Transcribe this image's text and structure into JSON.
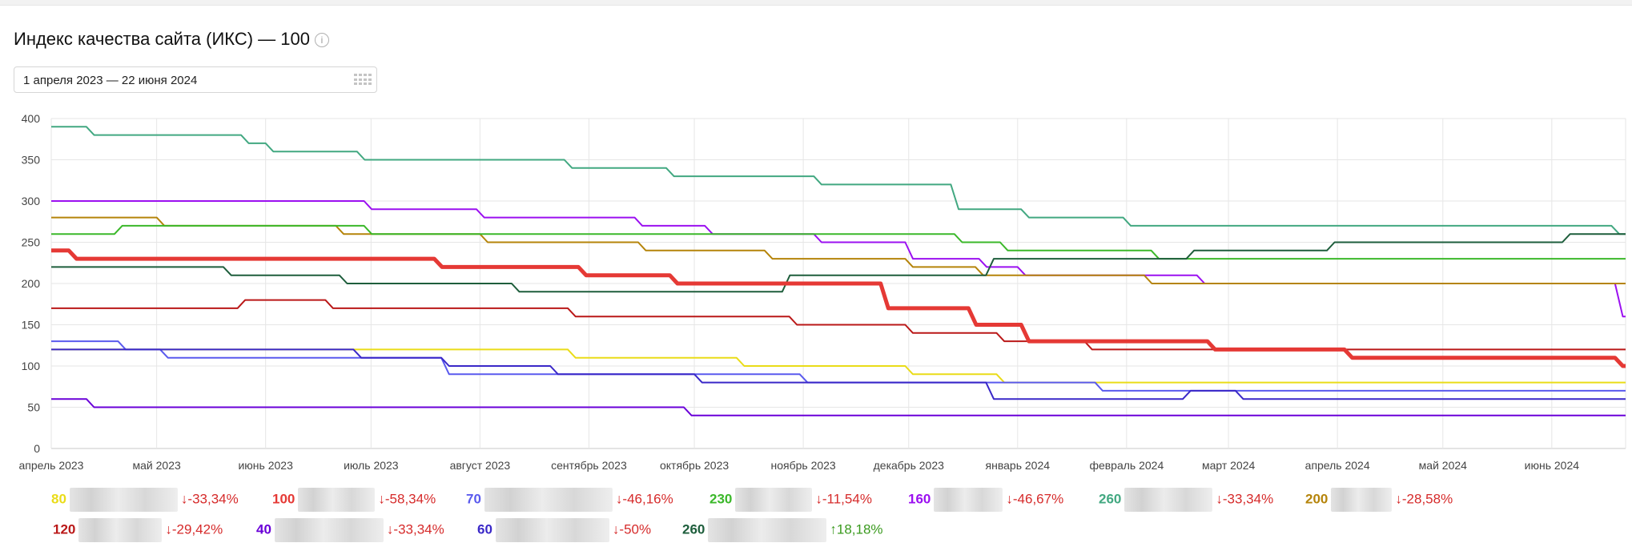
{
  "title": "Индекс качества сайта (ИКС) — 100",
  "info_icon": "info-icon",
  "date_range": "1 апреля 2023 — 22 июня 2024",
  "calendar_icon": "calendar-grid-icon",
  "chart_data": {
    "type": "line",
    "title": "",
    "xlabel": "",
    "ylabel": "",
    "x_range": [
      "2023-04-01",
      "2024-06-22"
    ],
    "ylim": [
      0,
      400
    ],
    "y_ticks": [
      0,
      50,
      100,
      150,
      200,
      250,
      300,
      350,
      400
    ],
    "x_ticks": [
      {
        "date": "2023-04-01",
        "label": "апрель 2023"
      },
      {
        "date": "2023-05-01",
        "label": "май 2023"
      },
      {
        "date": "2023-06-01",
        "label": "июнь 2023"
      },
      {
        "date": "2023-07-01",
        "label": "июль 2023"
      },
      {
        "date": "2023-08-01",
        "label": "август 2023"
      },
      {
        "date": "2023-09-01",
        "label": "сентябрь 2023"
      },
      {
        "date": "2023-10-01",
        "label": "октябрь 2023"
      },
      {
        "date": "2023-11-01",
        "label": "ноябрь 2023"
      },
      {
        "date": "2023-12-01",
        "label": "декабрь 2023"
      },
      {
        "date": "2024-01-01",
        "label": "январь 2024"
      },
      {
        "date": "2024-02-01",
        "label": "февраль 2024"
      },
      {
        "date": "2024-03-01",
        "label": "март 2024"
      },
      {
        "date": "2024-04-01",
        "label": "апрель 2024"
      },
      {
        "date": "2024-05-01",
        "label": "май 2024"
      },
      {
        "date": "2024-06-01",
        "label": "июнь 2024"
      }
    ],
    "grid": true,
    "series": [
      {
        "color": "#42a881",
        "legend_value": "260",
        "change": "↓-33,34%",
        "steps": [
          [
            "2023-04-01",
            390
          ],
          [
            "2023-04-11",
            380
          ],
          [
            "2023-05-25",
            370
          ],
          [
            "2023-06-01",
            360
          ],
          [
            "2023-06-27",
            350
          ],
          [
            "2023-08-25",
            340
          ],
          [
            "2023-09-23",
            330
          ],
          [
            "2023-11-04",
            320
          ],
          [
            "2023-12-13",
            290
          ],
          [
            "2024-01-02",
            280
          ],
          [
            "2024-01-31",
            270
          ],
          [
            "2024-06-18",
            260
          ],
          [
            "2024-06-22",
            260
          ]
        ]
      },
      {
        "color": "#9b10f0",
        "legend_value": "160",
        "change": "↓-46,67%",
        "steps": [
          [
            "2023-04-01",
            300
          ],
          [
            "2023-06-29",
            290
          ],
          [
            "2023-07-31",
            280
          ],
          [
            "2023-09-14",
            270
          ],
          [
            "2023-10-04",
            260
          ],
          [
            "2023-11-04",
            250
          ],
          [
            "2023-11-30",
            230
          ],
          [
            "2023-12-21",
            220
          ],
          [
            "2024-01-01",
            210
          ],
          [
            "2024-02-21",
            200
          ],
          [
            "2024-06-19",
            160
          ],
          [
            "2024-06-22",
            160
          ]
        ]
      },
      {
        "color": "#b5840a",
        "legend_value": "200",
        "change": "↓-28,58%",
        "steps": [
          [
            "2023-04-01",
            280
          ],
          [
            "2023-05-01",
            270
          ],
          [
            "2023-06-21",
            260
          ],
          [
            "2023-08-01",
            250
          ],
          [
            "2023-09-15",
            240
          ],
          [
            "2023-10-21",
            230
          ],
          [
            "2023-11-30",
            220
          ],
          [
            "2023-12-20",
            210
          ],
          [
            "2024-02-06",
            200
          ],
          [
            "2024-06-22",
            200
          ]
        ]
      },
      {
        "color": "#3bb82a",
        "legend_value": "230",
        "change": "↓-11,54%",
        "steps": [
          [
            "2023-04-01",
            260
          ],
          [
            "2023-04-19",
            270
          ],
          [
            "2023-06-29",
            260
          ],
          [
            "2023-12-14",
            250
          ],
          [
            "2023-12-27",
            240
          ],
          [
            "2024-02-08",
            230
          ],
          [
            "2024-06-22",
            230
          ]
        ]
      },
      {
        "color": "#1e5e3c",
        "legend_value": "260",
        "change": "↑18,18%",
        "steps": [
          [
            "2023-04-01",
            220
          ],
          [
            "2023-05-20",
            210
          ],
          [
            "2023-06-22",
            200
          ],
          [
            "2023-08-10",
            190
          ],
          [
            "2023-10-26",
            210
          ],
          [
            "2023-12-23",
            230
          ],
          [
            "2024-02-18",
            240
          ],
          [
            "2024-03-29",
            250
          ],
          [
            "2024-06-04",
            260
          ],
          [
            "2024-06-22",
            260
          ]
        ]
      },
      {
        "color": "#e53935",
        "legend_value": "100",
        "change": "↓-58,34%",
        "bold": true,
        "steps": [
          [
            "2023-04-01",
            240
          ],
          [
            "2023-04-06",
            230
          ],
          [
            "2023-07-19",
            220
          ],
          [
            "2023-08-29",
            210
          ],
          [
            "2023-09-24",
            200
          ],
          [
            "2023-11-23",
            170
          ],
          [
            "2023-12-18",
            150
          ],
          [
            "2024-01-02",
            130
          ],
          [
            "2024-02-24",
            120
          ],
          [
            "2024-04-03",
            110
          ],
          [
            "2024-06-19",
            100
          ],
          [
            "2024-06-22",
            100
          ]
        ]
      },
      {
        "color": "#ba1818",
        "legend_value": "120",
        "change": "↓-29,42%",
        "steps": [
          [
            "2023-04-01",
            170
          ],
          [
            "2023-05-24",
            180
          ],
          [
            "2023-06-18",
            170
          ],
          [
            "2023-08-26",
            160
          ],
          [
            "2023-10-28",
            150
          ],
          [
            "2023-11-30",
            140
          ],
          [
            "2023-12-26",
            130
          ],
          [
            "2024-01-20",
            120
          ],
          [
            "2024-06-22",
            120
          ]
        ]
      },
      {
        "color": "#eadc18",
        "legend_value": "80",
        "change": "↓-33,34%",
        "steps": [
          [
            "2023-04-01",
            120
          ],
          [
            "2023-08-26",
            110
          ],
          [
            "2023-10-13",
            100
          ],
          [
            "2023-11-30",
            90
          ],
          [
            "2023-12-26",
            80
          ],
          [
            "2024-06-22",
            80
          ]
        ]
      },
      {
        "color": "#5a5aee",
        "legend_value": "70",
        "change": "↓-46,16%",
        "steps": [
          [
            "2023-04-01",
            130
          ],
          [
            "2023-04-20",
            120
          ],
          [
            "2023-05-02",
            110
          ],
          [
            "2023-06-26",
            110
          ],
          [
            "2023-07-21",
            90
          ],
          [
            "2023-10-31",
            80
          ],
          [
            "2024-01-23",
            70
          ],
          [
            "2024-06-22",
            70
          ]
        ]
      },
      {
        "color": "#3a28c8",
        "legend_value": "60",
        "change": "↓-50%",
        "steps": [
          [
            "2023-04-01",
            120
          ],
          [
            "2023-06-26",
            110
          ],
          [
            "2023-07-21",
            100
          ],
          [
            "2023-08-21",
            90
          ],
          [
            "2023-10-01",
            80
          ],
          [
            "2023-12-23",
            60
          ],
          [
            "2024-02-17",
            70
          ],
          [
            "2024-03-03",
            60
          ],
          [
            "2024-06-22",
            60
          ]
        ]
      },
      {
        "color": "#6a00d8",
        "legend_value": "40",
        "change": "↓-33,34%",
        "steps": [
          [
            "2023-04-01",
            60
          ],
          [
            "2023-04-11",
            50
          ],
          [
            "2023-09-28",
            40
          ],
          [
            "2024-06-22",
            40
          ]
        ]
      }
    ],
    "legend": [
      {
        "value": "80",
        "color": "#eadc18",
        "change": "↓-33,34%",
        "change_color": "#d62b2b"
      },
      {
        "value": "100",
        "color": "#e53935",
        "change": "↓-58,34%",
        "change_color": "#d62b2b"
      },
      {
        "value": "70",
        "color": "#5a5aee",
        "change": "↓-46,16%",
        "change_color": "#d62b2b"
      },
      {
        "value": "230",
        "color": "#3bb82a",
        "change": "↓-11,54%",
        "change_color": "#d62b2b"
      },
      {
        "value": "160",
        "color": "#9b10f0",
        "change": "↓-46,67%",
        "change_color": "#d62b2b"
      },
      {
        "value": "260",
        "color": "#42a881",
        "change": "↓-33,34%",
        "change_color": "#d62b2b"
      },
      {
        "value": "200",
        "color": "#b5840a",
        "change": "↓-28,58%",
        "change_color": "#d62b2b"
      },
      {
        "value": "120",
        "color": "#ba1818",
        "change": "↓-29,42%",
        "change_color": "#d62b2b"
      },
      {
        "value": "40",
        "color": "#6a00d8",
        "change": "↓-33,34%",
        "change_color": "#d62b2b"
      },
      {
        "value": "60",
        "color": "#3a28c8",
        "change": "↓-50%",
        "change_color": "#d62b2b"
      },
      {
        "value": "260",
        "color": "#1e5e3c",
        "change": "↑18,18%",
        "change_color": "#3a9a1e"
      }
    ]
  }
}
